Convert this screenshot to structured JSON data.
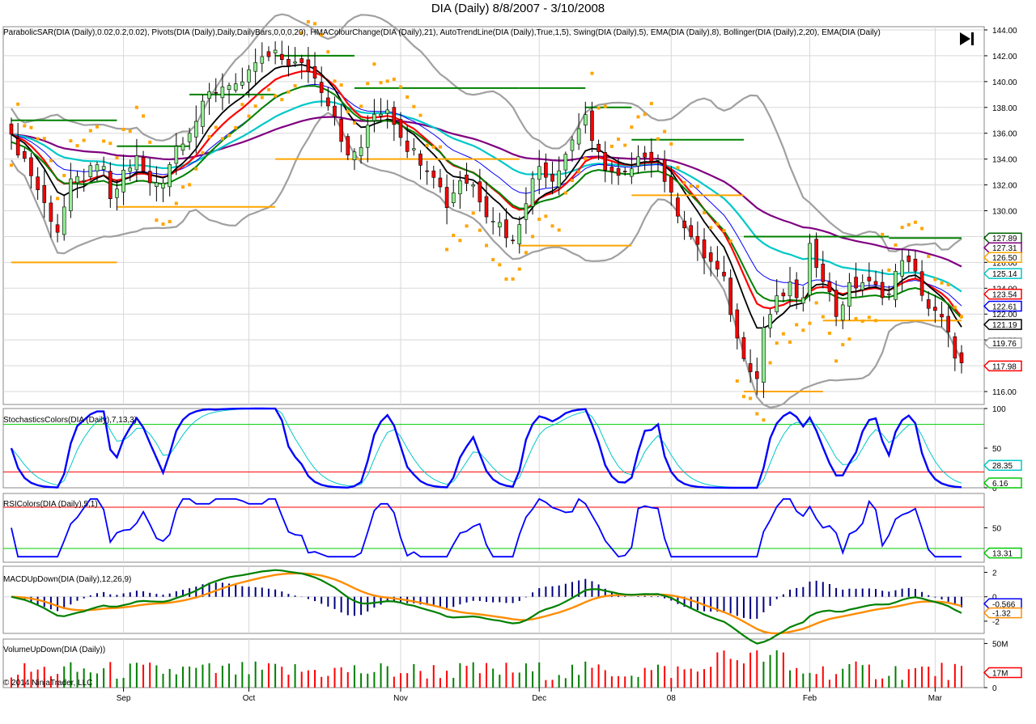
{
  "title": "DIA (Daily)  8/8/2007 - 3/10/2008",
  "copyright": "© 2014 NinjaTrader, LLC",
  "panels": {
    "price": {
      "label": "ParabolicSAR(DIA (Daily),0.02,0.2,0.02), Pivots(DIA (Daily),Daily,DailyBars,0,0,0,20), HMAColourChange(DIA (Daily),21), AutoTrendLine(DIA (Daily),True,1,5), Swing(DIA (Daily),5), EMA(DIA (Daily),8), Bollinger(DIA (Daily),2,20), EMA(DIA (Daily)",
      "ticks": [
        "144.00",
        "142.00",
        "140.00",
        "138.00",
        "136.00",
        "134.00",
        "132.00",
        "130.00",
        "128.00",
        "126.00",
        "124.00",
        "122.00",
        "120.00",
        "118.00",
        "116.00"
      ],
      "tags": [
        {
          "text": "127.89",
          "value": 127.89,
          "color": "#006400"
        },
        {
          "text": "127.31",
          "value": 127.31,
          "color": "#800080"
        },
        {
          "text": "126.50",
          "value": 126.5,
          "color": "#ffa500"
        },
        {
          "text": "125.14",
          "value": 125.14,
          "color": "#00c8c8"
        },
        {
          "text": "123.54",
          "value": 123.54,
          "color": "#ff0000"
        },
        {
          "text": "122.61",
          "value": 122.61,
          "color": "#0000ff"
        },
        {
          "text": "121.19",
          "value": 121.19,
          "color": "#000000"
        },
        {
          "text": "119.76",
          "value": 119.76,
          "color": "#a0a0a0"
        },
        {
          "text": "117.98",
          "value": 117.98,
          "color": "#ff0000"
        }
      ]
    },
    "stoch": {
      "label": "StochasticsColors(DIA (Daily),7,13,3)",
      "ticks": [
        "100",
        "50",
        "0"
      ],
      "tags": [
        {
          "text": "28.35",
          "value": 28.35,
          "color": "#00c8c8"
        },
        {
          "text": "6.16",
          "value": 6.16,
          "color": "#00cc00"
        }
      ]
    },
    "rsi": {
      "label": "RSIColors(DIA (Daily),5,1)",
      "ticks": [
        "50"
      ],
      "tags": [
        {
          "text": "13.31",
          "value": 13.31,
          "color": "#00cc00"
        }
      ]
    },
    "macd": {
      "label": "MACDUpDown(DIA (Daily),12,26,9)",
      "ticks": [
        "2",
        "0",
        "-2"
      ],
      "tags": [
        {
          "text": "-0.566",
          "value": -0.566,
          "color": "#0000ff"
        },
        {
          "text": "-1.32",
          "value": -1.32,
          "color": "#ff8c00"
        }
      ]
    },
    "volume": {
      "label": "VolumeUpDown(DIA (Daily))",
      "ticks": [
        "50M",
        "0"
      ],
      "tags": [
        {
          "text": "17M",
          "value": 17,
          "color": "#ff0000"
        }
      ]
    }
  },
  "x_axis": {
    "labels": [
      {
        "text": "Sep",
        "bar": 17
      },
      {
        "text": "Oct",
        "bar": 36
      },
      {
        "text": "Nov",
        "bar": 59
      },
      {
        "text": "Dec",
        "bar": 80
      },
      {
        "text": "08",
        "bar": 100
      },
      {
        "text": "Feb",
        "bar": 121
      },
      {
        "text": "Mar",
        "bar": 140
      }
    ]
  },
  "chart_data": {
    "type": "candlestick",
    "symbol": "DIA (Daily)",
    "interval": "Daily",
    "date_range": [
      "8/8/2007",
      "3/10/2008"
    ],
    "ylim": [
      115.0,
      144.0
    ],
    "bars": 145,
    "close_anchors": [
      [
        0,
        135.5
      ],
      [
        2,
        134
      ],
      [
        5,
        130.5
      ],
      [
        7,
        128.5
      ],
      [
        9,
        132
      ],
      [
        12,
        133
      ],
      [
        14,
        133.5
      ],
      [
        15,
        130.5
      ],
      [
        17,
        133
      ],
      [
        19,
        134
      ],
      [
        21,
        132
      ],
      [
        23,
        132.5
      ],
      [
        25,
        135
      ],
      [
        28,
        137
      ],
      [
        30,
        139
      ],
      [
        33,
        140
      ],
      [
        35,
        139.5
      ],
      [
        37,
        141.5
      ],
      [
        40,
        142
      ],
      [
        42,
        141.5
      ],
      [
        45,
        141
      ],
      [
        47,
        139.5
      ],
      [
        49,
        137.5
      ],
      [
        51,
        134
      ],
      [
        53,
        135
      ],
      [
        55,
        137.5
      ],
      [
        57,
        138
      ],
      [
        58,
        137
      ],
      [
        60,
        135
      ],
      [
        62,
        134
      ],
      [
        64,
        133
      ],
      [
        66,
        130.5
      ],
      [
        68,
        132.5
      ],
      [
        70,
        132
      ],
      [
        72,
        130
      ],
      [
        74,
        129
      ],
      [
        76,
        127.5
      ],
      [
        78,
        131
      ],
      [
        80,
        133.5
      ],
      [
        82,
        132.5
      ],
      [
        84,
        134.5
      ],
      [
        86,
        136.5
      ],
      [
        87,
        137.5
      ],
      [
        88,
        135
      ],
      [
        90,
        133.5
      ],
      [
        92,
        132.5
      ],
      [
        94,
        133
      ],
      [
        96,
        134.5
      ],
      [
        98,
        134
      ],
      [
        100,
        131
      ],
      [
        102,
        129
      ],
      [
        104,
        127
      ],
      [
        106,
        126
      ],
      [
        108,
        124.5
      ],
      [
        110,
        120
      ],
      [
        112,
        118
      ],
      [
        113,
        117
      ],
      [
        114,
        121
      ],
      [
        116,
        123
      ],
      [
        118,
        124
      ],
      [
        120,
        123
      ],
      [
        121,
        127
      ],
      [
        123,
        125
      ],
      [
        125,
        122
      ],
      [
        127,
        124
      ],
      [
        129,
        124.5
      ],
      [
        131,
        124
      ],
      [
        133,
        123.5
      ],
      [
        135,
        126.5
      ],
      [
        137,
        125
      ],
      [
        139,
        122.5
      ],
      [
        141,
        121.5
      ],
      [
        143,
        119
      ],
      [
        144,
        118
      ]
    ],
    "series": [
      {
        "name": "EMA(DIA (Daily),8)",
        "color": "#000000",
        "last": 121.19
      },
      {
        "name": "HMAColourChange(DIA (Daily),21)",
        "color": "#ff0000",
        "last": 123.54
      },
      {
        "name": "Bollinger(DIA (Daily),2,20)",
        "color": "#a0a0a0",
        "last": 119.76
      },
      {
        "name": "ParabolicSAR(DIA (Daily),0.02,0.2,0.02)",
        "color": "#ffa500",
        "last": 126.5
      },
      {
        "name": "Pivots",
        "color": "#006400",
        "last": 127.89
      }
    ],
    "indicators": {
      "stochastics": {
        "levels": [
          20,
          80
        ],
        "ylim": [
          0,
          100
        ],
        "last": [
          28.35,
          6.16
        ]
      },
      "rsi": {
        "levels": [
          20,
          80
        ],
        "ylim": [
          0,
          100
        ],
        "last": 13.31
      },
      "macd": {
        "ylim": [
          -3,
          2.5
        ],
        "last": [
          -0.566,
          -1.32
        ]
      },
      "volume": {
        "ylim": [
          0,
          55
        ],
        "last": 17
      }
    },
    "grid": true
  },
  "colors": {
    "up": "#90ee90",
    "down": "#ff0000",
    "border": "#888888",
    "grid": "#d8d8d8"
  },
  "icons": {
    "play": "play-to-end-icon"
  }
}
